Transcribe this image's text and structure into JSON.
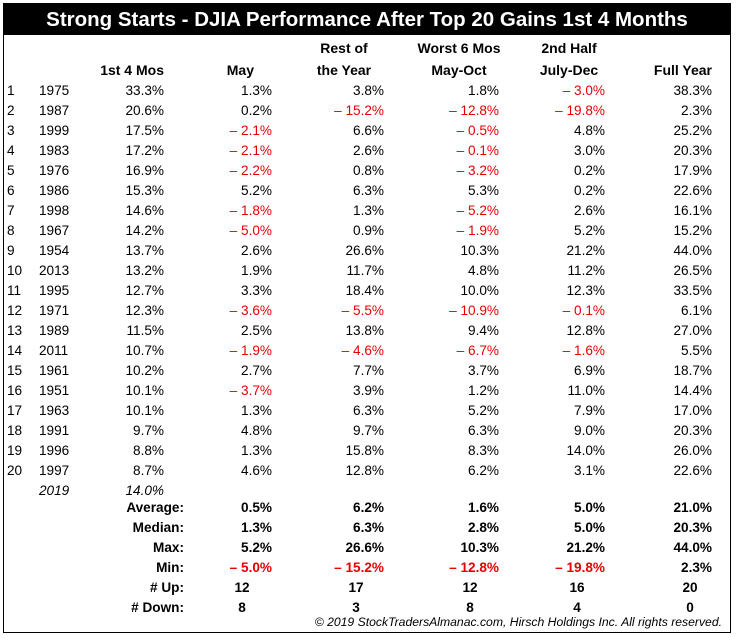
{
  "title": "Strong Starts - DJIA Performance After Top 20 Gains 1st 4 Months",
  "headers": {
    "first4": "1st 4 Mos",
    "may": "May",
    "rest_line1": "Rest of",
    "rest_line2": "the Year",
    "worst_line1": "Worst 6 Mos",
    "worst_line2": "May-Oct",
    "half_line1": "2nd Half",
    "half_line2": "July-Dec",
    "full": "Full Year"
  },
  "rows": [
    {
      "idx": "1",
      "year": "1975",
      "first4": "33.3%",
      "may": "1.3%",
      "rest": "3.8%",
      "worst": "1.8%",
      "half": "– 3.0%",
      "full": "38.3%"
    },
    {
      "idx": "2",
      "year": "1987",
      "first4": "20.6%",
      "may": "0.2%",
      "rest": "– 15.2%",
      "worst": "– 12.8%",
      "half": "– 19.8%",
      "full": "2.3%"
    },
    {
      "idx": "3",
      "year": "1999",
      "first4": "17.5%",
      "may": "– 2.1%",
      "rest": "6.6%",
      "worst": "– 0.5%",
      "half": "4.8%",
      "full": "25.2%"
    },
    {
      "idx": "4",
      "year": "1983",
      "first4": "17.2%",
      "may": "– 2.1%",
      "rest": "2.6%",
      "worst": "– 0.1%",
      "half": "3.0%",
      "full": "20.3%"
    },
    {
      "idx": "5",
      "year": "1976",
      "first4": "16.9%",
      "may": "– 2.2%",
      "rest": "0.8%",
      "worst": "– 3.2%",
      "half": "0.2%",
      "full": "17.9%"
    },
    {
      "idx": "6",
      "year": "1986",
      "first4": "15.3%",
      "may": "5.2%",
      "rest": "6.3%",
      "worst": "5.3%",
      "half": "0.2%",
      "full": "22.6%"
    },
    {
      "idx": "7",
      "year": "1998",
      "first4": "14.6%",
      "may": "– 1.8%",
      "rest": "1.3%",
      "worst": "– 5.2%",
      "half": "2.6%",
      "full": "16.1%"
    },
    {
      "idx": "8",
      "year": "1967",
      "first4": "14.2%",
      "may": "– 5.0%",
      "rest": "0.9%",
      "worst": "– 1.9%",
      "half": "5.2%",
      "full": "15.2%"
    },
    {
      "idx": "9",
      "year": "1954",
      "first4": "13.7%",
      "may": "2.6%",
      "rest": "26.6%",
      "worst": "10.3%",
      "half": "21.2%",
      "full": "44.0%"
    },
    {
      "idx": "10",
      "year": "2013",
      "first4": "13.2%",
      "may": "1.9%",
      "rest": "11.7%",
      "worst": "4.8%",
      "half": "11.2%",
      "full": "26.5%"
    },
    {
      "idx": "11",
      "year": "1995",
      "first4": "12.7%",
      "may": "3.3%",
      "rest": "18.4%",
      "worst": "10.0%",
      "half": "12.3%",
      "full": "33.5%"
    },
    {
      "idx": "12",
      "year": "1971",
      "first4": "12.3%",
      "may": "– 3.6%",
      "rest": "– 5.5%",
      "worst": "– 10.9%",
      "half": "– 0.1%",
      "full": "6.1%"
    },
    {
      "idx": "13",
      "year": "1989",
      "first4": "11.5%",
      "may": "2.5%",
      "rest": "13.8%",
      "worst": "9.4%",
      "half": "12.8%",
      "full": "27.0%"
    },
    {
      "idx": "14",
      "year": "2011",
      "first4": "10.7%",
      "may": "– 1.9%",
      "rest": "– 4.6%",
      "worst": "– 6.7%",
      "half": "– 1.6%",
      "full": "5.5%"
    },
    {
      "idx": "15",
      "year": "1961",
      "first4": "10.2%",
      "may": "2.7%",
      "rest": "7.7%",
      "worst": "3.7%",
      "half": "6.9%",
      "full": "18.7%"
    },
    {
      "idx": "16",
      "year": "1951",
      "first4": "10.1%",
      "may": "– 3.7%",
      "rest": "3.9%",
      "worst": "1.2%",
      "half": "11.0%",
      "full": "14.4%"
    },
    {
      "idx": "17",
      "year": "1963",
      "first4": "10.1%",
      "may": "1.3%",
      "rest": "6.3%",
      "worst": "5.2%",
      "half": "7.9%",
      "full": "17.0%"
    },
    {
      "idx": "18",
      "year": "1991",
      "first4": "9.7%",
      "may": "4.8%",
      "rest": "9.7%",
      "worst": "6.3%",
      "half": "9.0%",
      "full": "20.3%"
    },
    {
      "idx": "19",
      "year": "1996",
      "first4": "8.8%",
      "may": "1.3%",
      "rest": "15.8%",
      "worst": "8.3%",
      "half": "14.0%",
      "full": "26.0%"
    },
    {
      "idx": "20",
      "year": "1997",
      "first4": "8.7%",
      "may": "4.6%",
      "rest": "12.8%",
      "worst": "6.2%",
      "half": "3.1%",
      "full": "22.6%"
    }
  ],
  "current": {
    "year": "2019",
    "first4": "14.0%"
  },
  "stats": [
    {
      "label": "Average:",
      "may": "0.5%",
      "rest": "6.2%",
      "worst": "1.6%",
      "half": "5.0%",
      "full": "21.0%"
    },
    {
      "label": "Median:",
      "may": "1.3%",
      "rest": "6.3%",
      "worst": "2.8%",
      "half": "5.0%",
      "full": "20.3%"
    },
    {
      "label": "Max:",
      "may": "5.2%",
      "rest": "26.6%",
      "worst": "10.3%",
      "half": "21.2%",
      "full": "44.0%"
    },
    {
      "label": "Min:",
      "may": "– 5.0%",
      "rest": "– 15.2%",
      "worst": "– 12.8%",
      "half": "– 19.8%",
      "full": "2.3%"
    },
    {
      "label": "# Up:",
      "may": "12",
      "rest": "17",
      "worst": "12",
      "half": "16",
      "full": "20"
    },
    {
      "label": "# Down:",
      "may": "8",
      "rest": "3",
      "worst": "8",
      "half": "4",
      "full": "0"
    }
  ],
  "footer": "© 2019 StockTradersAlmanac.com, Hirsch Holdings Inc. All rights reserved.",
  "colors": {
    "negative": "#e60000",
    "title_bg": "#000000",
    "title_fg": "#ffffff"
  }
}
